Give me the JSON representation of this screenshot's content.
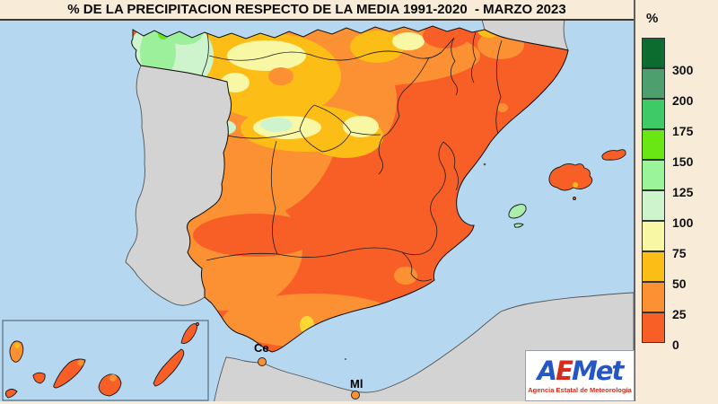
{
  "title": "% DE LA PRECIPITACION RESPECTO DE LA MEDIA 1991-2020  - MARZO 2023",
  "legend": {
    "unit_label": "%",
    "entries": [
      {
        "label": "300",
        "color": "#0c6b2e"
      },
      {
        "label": "200",
        "color": "#4da06e"
      },
      {
        "label": "175",
        "color": "#3ecb67"
      },
      {
        "label": "150",
        "color": "#68e715"
      },
      {
        "label": "125",
        "color": "#99f49a"
      },
      {
        "label": "100",
        "color": "#cdf4cd"
      },
      {
        "label": "75",
        "color": "#f8f8a4"
      },
      {
        "label": "50",
        "color": "#fcbd16"
      },
      {
        "label": "25",
        "color": "#fb9133"
      },
      {
        "label": "0",
        "color": "#f85f27"
      }
    ]
  },
  "map": {
    "ceuta_label": "Ce",
    "melilla_label": "Ml"
  },
  "logo": {
    "brand_a": "A",
    "brand_e": "E",
    "brand_met": "Met",
    "tagline": "Agencia Estatal de Meteorología"
  },
  "colors": {
    "sea": "#b5d7ef",
    "foreign_land": "#d3d3d3",
    "panel_background": "#f8ecd9"
  }
}
